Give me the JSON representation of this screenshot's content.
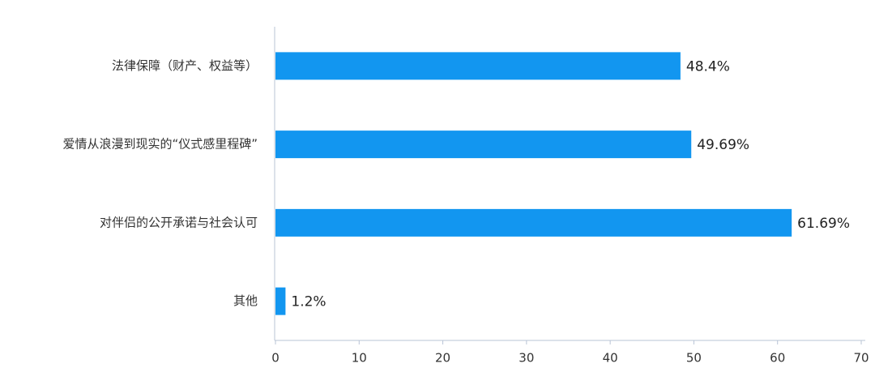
{
  "chart_data": {
    "type": "bar",
    "horizontal": true,
    "categories": [
      "法律保障（财产、权益等）",
      "爱情从浪漫到现实的“仪式感里程碑”",
      "对伴侣的公开承诺与社会认可",
      "其他"
    ],
    "values": [
      48.4,
      49.69,
      61.69,
      1.2
    ],
    "value_labels": [
      "48.4%",
      "49.69%",
      "61.69%",
      "1.2%"
    ],
    "color": "#1296f0",
    "xlim": [
      0,
      70
    ],
    "xticks": [
      0,
      10,
      20,
      30,
      40,
      50,
      60,
      70
    ]
  }
}
